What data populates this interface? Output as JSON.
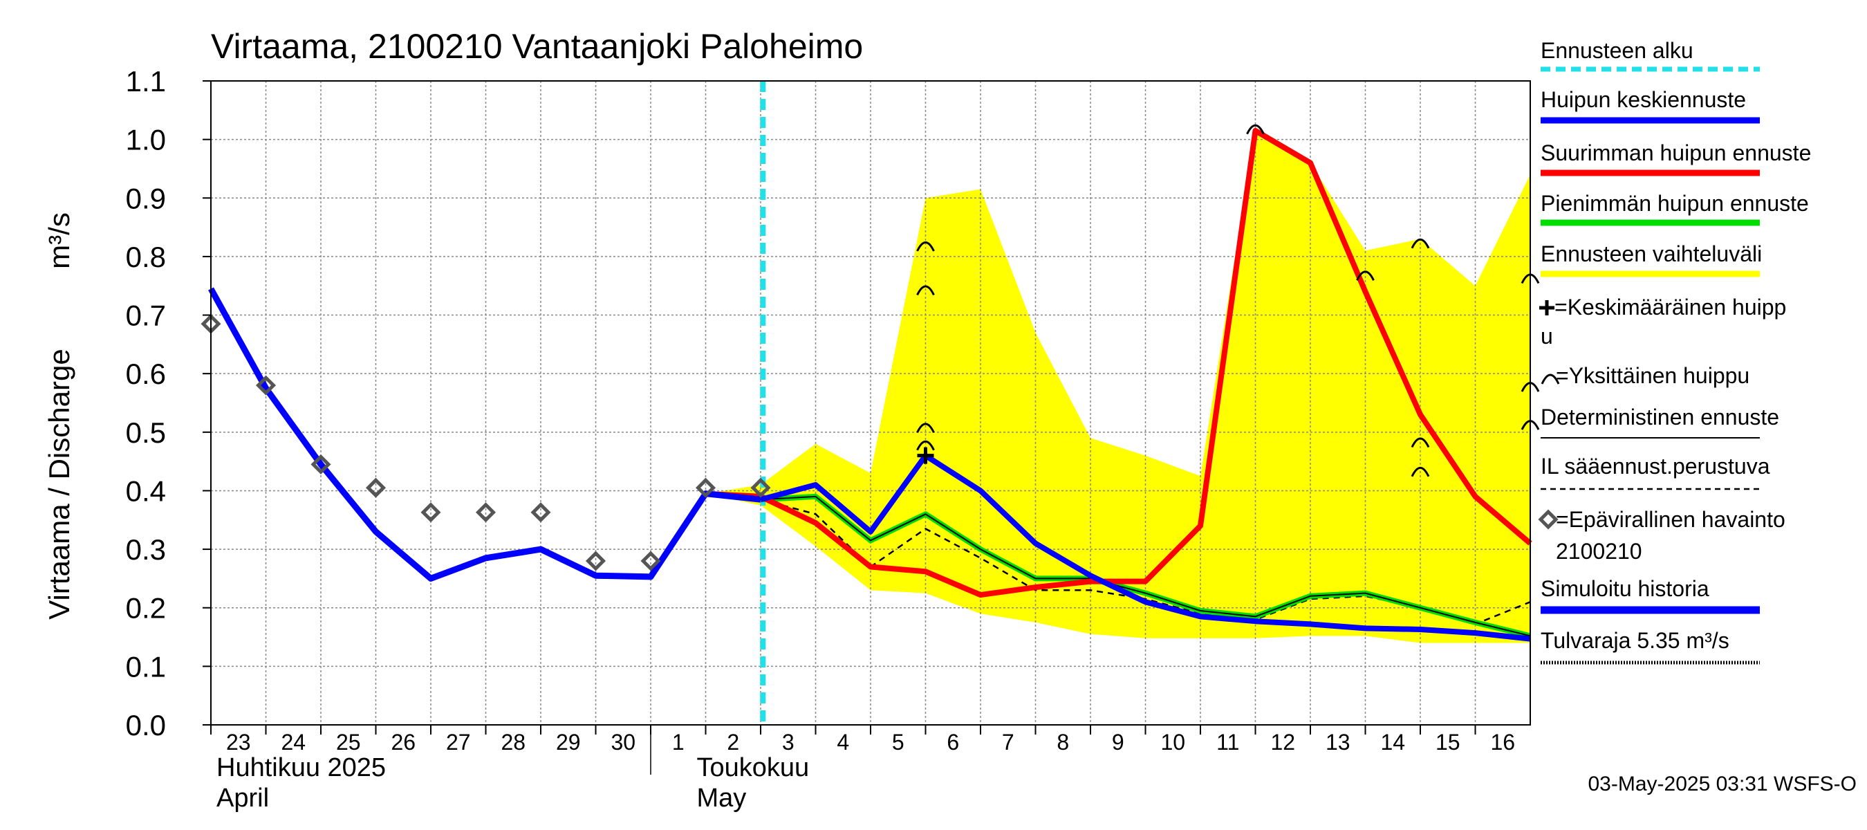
{
  "chart_data": {
    "type": "line",
    "title": "Virtaama, 2100210 Vantaanjoki Paloheimo",
    "ylabel": "Virtaama / Discharge",
    "yunit": "m³/s",
    "ylim": [
      0.0,
      1.1
    ],
    "yticks": [
      "0.0",
      "0.1",
      "0.2",
      "0.3",
      "0.4",
      "0.5",
      "0.6",
      "0.7",
      "0.8",
      "0.9",
      "1.0",
      "1.1"
    ],
    "x_start": "2025-04-23",
    "x_end": "2025-05-17",
    "xtick_labels": [
      "23",
      "24",
      "25",
      "26",
      "27",
      "28",
      "29",
      "30",
      "1",
      "2",
      "3",
      "4",
      "5",
      "6",
      "7",
      "8",
      "9",
      "10",
      "11",
      "12",
      "13",
      "14",
      "15",
      "16"
    ],
    "month_labels": [
      {
        "fi": "Huhtikuu  2025",
        "en": "April"
      },
      {
        "fi": "Toukokuu",
        "en": "May"
      }
    ],
    "grid": true,
    "legend_position": "right",
    "forecast_start": "2025-05-03T01:00",
    "timestamp": "03-May-2025 03:31 WSFS-O",
    "colors": {
      "forecast_start": "#22e0e8",
      "mean_peak": "#0000ff",
      "max_peak": "#ff0000",
      "min_peak": "#00dd00",
      "range": "#ffff00",
      "history": "#0000ff",
      "observation": "#555555"
    },
    "legend": [
      {
        "key": "forecast_start",
        "label": "Ennusteen alku"
      },
      {
        "key": "mean_peak",
        "label": "Huipun keskiennuste"
      },
      {
        "key": "max_peak",
        "label": "Suurimman huipun ennuste"
      },
      {
        "key": "min_peak",
        "label": "Pienimmän huipun ennuste"
      },
      {
        "key": "range",
        "label": "Ennusteen vaihteluväli"
      },
      {
        "key": "avg_peak_marker",
        "label": "=Keskimääräinen huipp",
        "label2": "u"
      },
      {
        "key": "single_peak_marker",
        "label": "=Yksittäinen huippu"
      },
      {
        "key": "deterministic",
        "label": "Deterministinen ennuste"
      },
      {
        "key": "il_based",
        "label": "IL sääennust.perustuva"
      },
      {
        "key": "observation",
        "label": "=Epävirallinen havainto",
        "label2": "2100210"
      },
      {
        "key": "history",
        "label": "Simuloitu historia"
      },
      {
        "key": "flood_limit",
        "label": "Tulvaraja 5.35 m³/s"
      }
    ],
    "series": [
      {
        "name": "Simuloitu historia",
        "points": [
          [
            "2025-04-23",
            0.745
          ],
          [
            "2025-04-24",
            0.575
          ],
          [
            "2025-04-25",
            0.445
          ],
          [
            "2025-04-26",
            0.33
          ],
          [
            "2025-04-27",
            0.25
          ],
          [
            "2025-04-28",
            0.285
          ],
          [
            "2025-04-29",
            0.3
          ],
          [
            "2025-04-30",
            0.255
          ],
          [
            "2025-05-01",
            0.253
          ],
          [
            "2025-05-02",
            0.395
          ],
          [
            "2025-05-03",
            0.385
          ]
        ]
      },
      {
        "name": "Huipun keskiennuste",
        "points": [
          [
            "2025-05-03",
            0.385
          ],
          [
            "2025-05-04",
            0.41
          ],
          [
            "2025-05-05",
            0.33
          ],
          [
            "2025-05-06",
            0.46
          ],
          [
            "2025-05-07",
            0.4
          ],
          [
            "2025-05-08",
            0.31
          ],
          [
            "2025-05-09",
            0.255
          ],
          [
            "2025-05-10",
            0.21
          ],
          [
            "2025-05-11",
            0.185
          ],
          [
            "2025-05-12",
            0.177
          ],
          [
            "2025-05-13",
            0.172
          ],
          [
            "2025-05-14",
            0.165
          ],
          [
            "2025-05-15",
            0.163
          ],
          [
            "2025-05-16",
            0.157
          ],
          [
            "2025-05-17",
            0.147
          ]
        ]
      },
      {
        "name": "Suurimman huipun ennuste",
        "points": [
          [
            "2025-05-02",
            0.395
          ],
          [
            "2025-05-03",
            0.39
          ],
          [
            "2025-05-04",
            0.345
          ],
          [
            "2025-05-05",
            0.27
          ],
          [
            "2025-05-06",
            0.262
          ],
          [
            "2025-05-07",
            0.222
          ],
          [
            "2025-05-08",
            0.235
          ],
          [
            "2025-05-09",
            0.245
          ],
          [
            "2025-05-10",
            0.245
          ],
          [
            "2025-05-11",
            0.34
          ],
          [
            "2025-05-12",
            1.015
          ],
          [
            "2025-05-13",
            0.96
          ],
          [
            "2025-05-14",
            0.74
          ],
          [
            "2025-05-15",
            0.53
          ],
          [
            "2025-05-16",
            0.39
          ],
          [
            "2025-05-17",
            0.31
          ]
        ]
      },
      {
        "name": "Pienimmän huipun ennuste",
        "points": [
          [
            "2025-05-02",
            0.395
          ],
          [
            "2025-05-03",
            0.385
          ],
          [
            "2025-05-04",
            0.39
          ],
          [
            "2025-05-05",
            0.315
          ],
          [
            "2025-05-06",
            0.36
          ],
          [
            "2025-05-07",
            0.3
          ],
          [
            "2025-05-08",
            0.25
          ],
          [
            "2025-05-09",
            0.25
          ],
          [
            "2025-05-10",
            0.225
          ],
          [
            "2025-05-11",
            0.195
          ],
          [
            "2025-05-12",
            0.185
          ],
          [
            "2025-05-13",
            0.22
          ],
          [
            "2025-05-14",
            0.225
          ],
          [
            "2025-05-15",
            0.2
          ],
          [
            "2025-05-16",
            0.175
          ],
          [
            "2025-05-17",
            0.152
          ]
        ]
      },
      {
        "name": "IL sääennust.perustuva",
        "points": [
          [
            "2025-05-03",
            0.385
          ],
          [
            "2025-05-04",
            0.36
          ],
          [
            "2025-05-05",
            0.27
          ],
          [
            "2025-05-06",
            0.335
          ],
          [
            "2025-05-07",
            0.285
          ],
          [
            "2025-05-08",
            0.23
          ],
          [
            "2025-05-09",
            0.23
          ],
          [
            "2025-05-10",
            0.215
          ],
          [
            "2025-05-11",
            0.19
          ],
          [
            "2025-05-12",
            0.18
          ],
          [
            "2025-05-13",
            0.215
          ],
          [
            "2025-05-14",
            0.22
          ],
          [
            "2025-05-15",
            0.2
          ],
          [
            "2025-05-16",
            0.172
          ],
          [
            "2025-05-17",
            0.21
          ]
        ]
      },
      {
        "name": "Ennusteen vaihteluväli",
        "upper": [
          [
            "2025-05-02",
            0.395
          ],
          [
            "2025-05-03",
            0.41
          ],
          [
            "2025-05-04",
            0.48
          ],
          [
            "2025-05-05",
            0.43
          ],
          [
            "2025-05-06",
            0.9
          ],
          [
            "2025-05-07",
            0.915
          ],
          [
            "2025-05-08",
            0.67
          ],
          [
            "2025-05-09",
            0.49
          ],
          [
            "2025-05-10",
            0.46
          ],
          [
            "2025-05-11",
            0.425
          ],
          [
            "2025-05-12",
            1.02
          ],
          [
            "2025-05-13",
            0.96
          ],
          [
            "2025-05-14",
            0.81
          ],
          [
            "2025-05-15",
            0.83
          ],
          [
            "2025-05-16",
            0.75
          ],
          [
            "2025-05-17",
            0.94
          ]
        ],
        "lower": [
          [
            "2025-05-02",
            0.395
          ],
          [
            "2025-05-03",
            0.375
          ],
          [
            "2025-05-04",
            0.305
          ],
          [
            "2025-05-05",
            0.23
          ],
          [
            "2025-05-06",
            0.225
          ],
          [
            "2025-05-07",
            0.19
          ],
          [
            "2025-05-08",
            0.175
          ],
          [
            "2025-05-09",
            0.155
          ],
          [
            "2025-05-10",
            0.148
          ],
          [
            "2025-05-11",
            0.148
          ],
          [
            "2025-05-12",
            0.148
          ],
          [
            "2025-05-13",
            0.152
          ],
          [
            "2025-05-14",
            0.152
          ],
          [
            "2025-05-15",
            0.14
          ],
          [
            "2025-05-16",
            0.14
          ],
          [
            "2025-05-17",
            0.14
          ]
        ]
      },
      {
        "name": "Epävirallinen havainto",
        "points": [
          [
            "2025-04-23",
            0.685
          ],
          [
            "2025-04-24",
            0.58
          ],
          [
            "2025-04-25",
            0.445
          ],
          [
            "2025-04-26",
            0.405
          ],
          [
            "2025-04-27",
            0.363
          ],
          [
            "2025-04-28",
            0.363
          ],
          [
            "2025-04-29",
            0.363
          ],
          [
            "2025-04-30",
            0.28
          ],
          [
            "2025-05-01",
            0.28
          ],
          [
            "2025-05-02",
            0.405
          ],
          [
            "2025-05-03",
            0.405
          ]
        ]
      },
      {
        "name": "Keskimääräinen huippu",
        "points": [
          [
            "2025-05-06",
            0.46
          ]
        ]
      },
      {
        "name": "Yksittäinen huippu",
        "points": [
          [
            "2025-05-06",
            0.82
          ],
          [
            "2025-05-06",
            0.745
          ],
          [
            "2025-05-06",
            0.51
          ],
          [
            "2025-05-06",
            0.48
          ],
          [
            "2025-05-12",
            1.02
          ],
          [
            "2025-05-14",
            0.77
          ],
          [
            "2025-05-15",
            0.825
          ],
          [
            "2025-05-15",
            0.485
          ],
          [
            "2025-05-15",
            0.435
          ],
          [
            "2025-05-17",
            0.765
          ],
          [
            "2025-05-17",
            0.58
          ],
          [
            "2025-05-17",
            0.515
          ]
        ]
      }
    ]
  }
}
